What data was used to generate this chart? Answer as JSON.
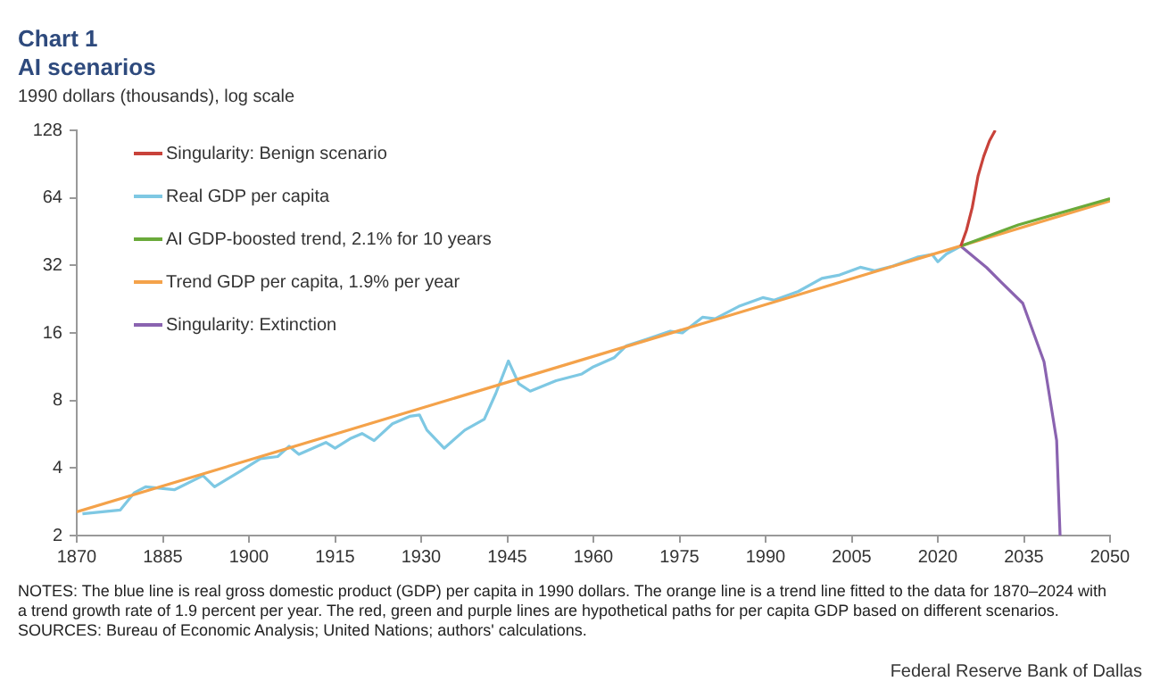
{
  "chart_data": {
    "type": "line",
    "title": "Chart 1",
    "subtitle": "AI scenarios",
    "ylabel": "1990 dollars (thousands),  log scale",
    "log": "y",
    "xlim": [
      1870,
      2050
    ],
    "xticks": [
      1870,
      1885,
      1900,
      1915,
      1930,
      1945,
      1960,
      1975,
      1990,
      2005,
      2020,
      2035,
      2050
    ],
    "ylim": [
      2,
      128
    ],
    "yticks": [
      2,
      4,
      8,
      16,
      32,
      64,
      128
    ],
    "legend": "top left",
    "marker": "none",
    "line_style": "solid",
    "series": [
      {
        "name": "Singularity: Benign scenario",
        "color": "#c8423a",
        "x": [
          2024,
          2025,
          2026,
          2027,
          2028,
          2029,
          2030
        ],
        "values": [
          39,
          46,
          58,
          80,
          98,
          115,
          128
        ]
      },
      {
        "name": "Real GDP per capita",
        "color": "#7ec8e3",
        "x": [
          1871,
          1877.6,
          1880,
          1882,
          1887,
          1892,
          1894,
          1898.7,
          1902,
          1905,
          1907,
          1908.7,
          1913.4,
          1915,
          1917.6,
          1919.7,
          1921.8,
          1925,
          1928,
          1929.7,
          1931,
          1934,
          1937.6,
          1941,
          1943,
          1945.2,
          1947,
          1949,
          1953.5,
          1958,
          1960,
          1963.6,
          1965.7,
          1969.3,
          1973.4,
          1975.5,
          1979,
          1981.2,
          1985.3,
          1989.5,
          1991.5,
          1995.7,
          1999.8,
          2002.9,
          2006.5,
          2009,
          2012.2,
          2016.4,
          2019,
          2020,
          2021.5,
          2024
        ],
        "values": [
          2.5,
          2.6,
          3.1,
          3.3,
          3.2,
          3.7,
          3.3,
          3.9,
          4.4,
          4.5,
          5,
          4.6,
          5.2,
          4.9,
          5.4,
          5.7,
          5.3,
          6.3,
          6.8,
          6.9,
          5.9,
          4.9,
          5.9,
          6.6,
          8.6,
          12,
          9.5,
          8.8,
          9.8,
          10.5,
          11.3,
          12.4,
          14,
          15,
          16.3,
          16,
          18.8,
          18.5,
          21,
          23,
          22.4,
          24.5,
          28,
          29,
          31.4,
          30.3,
          31.8,
          34.8,
          35.8,
          33.2,
          36,
          39
        ]
      },
      {
        "name": "AI GDP-boosted trend, 2.1% for 10 years",
        "color": "#6aaa3a",
        "x": [
          2024,
          2034,
          2050
        ],
        "values": [
          39,
          48.5,
          63.5
        ]
      },
      {
        "name": "Trend GDP per capita, 1.9% per year",
        "color": "#f4a24a",
        "x": [
          1870,
          2050
        ],
        "values": [
          2.55,
          62
        ]
      },
      {
        "name": "Singularity: Extinction",
        "color": "#8a63b0",
        "x": [
          2024,
          2028.5,
          2031,
          2034.8,
          2038.5,
          2040.7,
          2041.3
        ],
        "values": [
          39,
          31.3,
          27,
          21.7,
          11.9,
          5.3,
          2
        ]
      }
    ],
    "annotations": [
      "NOTES: The blue line is real gross domestic product (GDP) per capita in 1990 dollars. The orange line is a trend line fitted to the data for 1870–2024 with a trend growth rate of 1.9 percent per year. The red, green and purple lines are hypothetical paths for per capita GDP based on different scenarios.",
      "SOURCES: Bureau of Economic Analysis; United Nations; authors' calculations.",
      "Federal Reserve Bank of Dallas"
    ]
  }
}
